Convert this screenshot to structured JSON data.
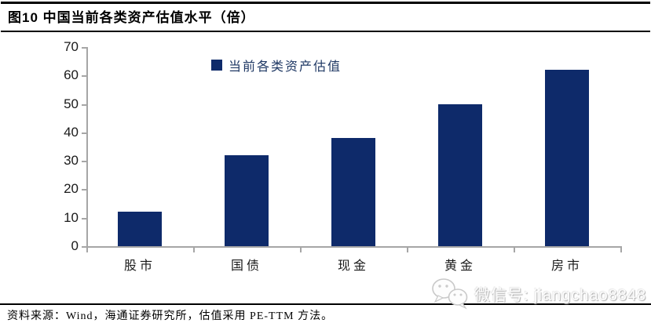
{
  "header": {
    "title": "图10 中国当前各类资产估值水平（倍）"
  },
  "chart_data": {
    "type": "bar",
    "title": "图10 中国当前各类资产估值水平（倍）",
    "categories": [
      "股市",
      "国债",
      "现金",
      "黄金",
      "房市"
    ],
    "values": [
      12,
      32,
      38,
      50,
      62
    ],
    "series": [
      {
        "name": "当前各类资产估值",
        "values": [
          12,
          32,
          38,
          50,
          62
        ]
      }
    ],
    "unit": "倍",
    "xlabel": "",
    "ylabel": "",
    "ylim": [
      0,
      70
    ],
    "yticks": [
      0,
      10,
      20,
      30,
      40,
      50,
      60,
      70
    ],
    "grid": false,
    "legend_position": "top-center",
    "bar_color": "#0e2a6a",
    "axis_color": "#a6a6a6"
  },
  "legend": {
    "label": "当前各类资产估值"
  },
  "footer": {
    "source": "资料来源：Wind，海通证券研究所，估值采用 PE-TTM 方法。"
  },
  "watermark": {
    "icon": "wechat-icon",
    "text": "微信号: jiangchao8848"
  }
}
